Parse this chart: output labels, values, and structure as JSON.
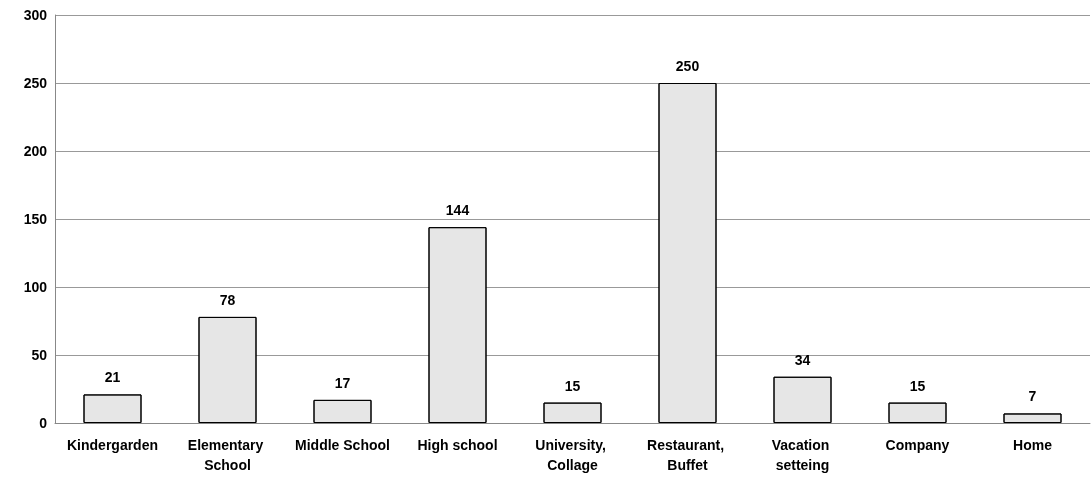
{
  "chart_data": {
    "type": "bar",
    "categories": [
      "Kindergarden",
      "Elementary School",
      "Middle School",
      "High school",
      "University, Collage",
      "Restaurant, Buffet",
      "Vacation setteing",
      "Company",
      "Home"
    ],
    "values": [
      21,
      78,
      17,
      144,
      15,
      250,
      34,
      15,
      7
    ],
    "color": "#e6e6e6",
    "ylim": [
      0,
      300
    ],
    "yticks": [
      0,
      50,
      100,
      150,
      200,
      250,
      300
    ],
    "grid": "y",
    "data_labels": true
  }
}
